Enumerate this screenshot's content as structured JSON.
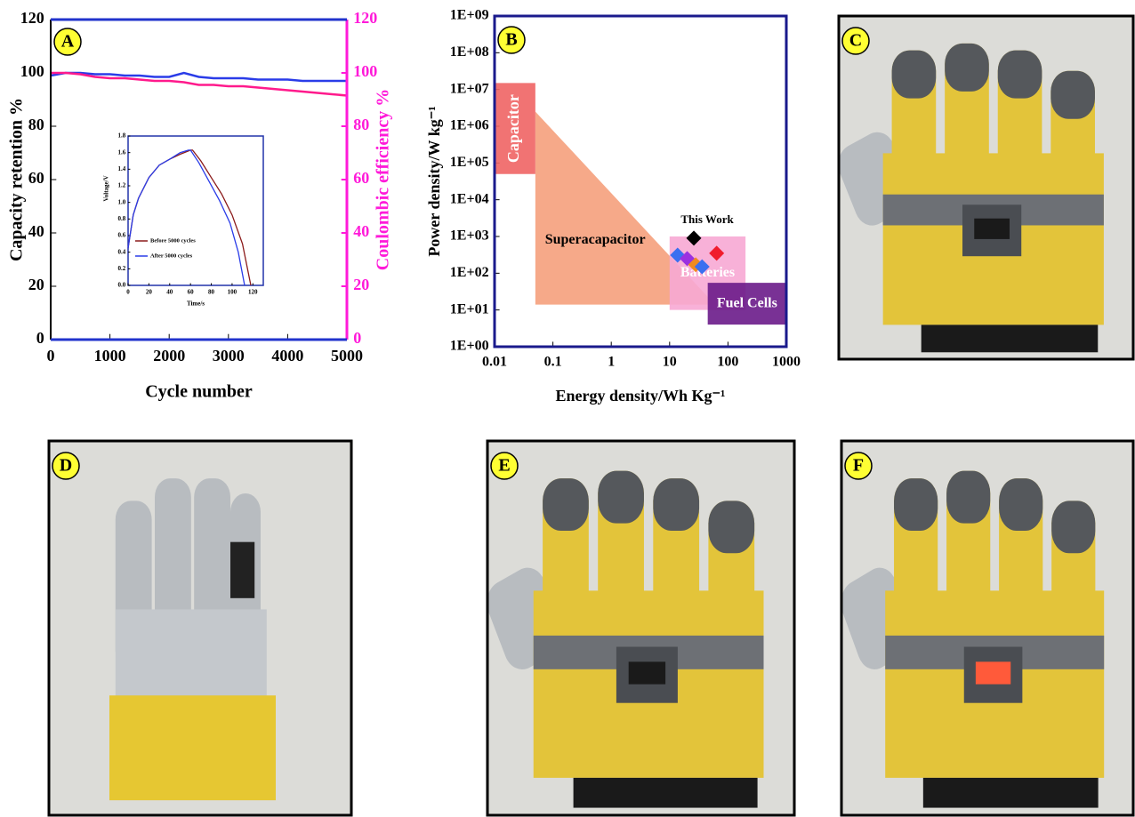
{
  "chart_data": [
    {
      "type": "line",
      "label": "A",
      "x": [
        0,
        250,
        500,
        750,
        1000,
        1250,
        1500,
        1750,
        2000,
        2250,
        2500,
        2750,
        3000,
        3250,
        3500,
        3750,
        4000,
        4250,
        4500,
        4750,
        5000
      ],
      "xlim": [
        0,
        5000
      ],
      "xticks": [
        0,
        1000,
        2000,
        3000,
        4000,
        5000
      ],
      "ylim": [
        0,
        120
      ],
      "yticks": [
        0,
        20,
        40,
        60,
        80,
        100,
        120
      ],
      "y2lim": [
        0,
        120
      ],
      "y2ticks": [
        0,
        20,
        40,
        60,
        80,
        100,
        120
      ],
      "x_label": "Cycle number",
      "y_label": "Capacity retention %",
      "y2_label": "Coulombic efficiency %",
      "y2_color": "#ff1ad9",
      "series": [
        {
          "color": "#2a3ce8",
          "values": [
            99,
            100,
            100,
            99.5,
            99.5,
            99,
            99,
            98.5,
            98.5,
            100,
            98.5,
            98,
            98,
            98,
            97.5,
            97.5,
            97.5,
            97,
            97,
            97,
            97
          ]
        },
        {
          "color": "#ff1a8c",
          "axis": "y2",
          "values": [
            100,
            100,
            99.5,
            98.5,
            98,
            98,
            97.5,
            97,
            97,
            96.5,
            95.5,
            95.5,
            95,
            95,
            94.5,
            94,
            93.5,
            93,
            92.5,
            92,
            91.5
          ]
        }
      ]
    },
    {
      "type": "line",
      "x_label": "Time/s",
      "y_label": "Voltage/V",
      "xlim": [
        0,
        130
      ],
      "xticks": [
        0,
        20,
        40,
        60,
        80,
        100,
        120
      ],
      "ylim": [
        0,
        1.8
      ],
      "yticks": [
        {
          "value": 0,
          "label": "0.0"
        },
        0.2,
        0.4,
        0.6,
        0.8,
        {
          "value": 1,
          "label": "1.0"
        },
        1.2,
        1.4,
        1.6,
        1.8
      ],
      "legend": "lower left",
      "series": [
        {
          "name": "Before 5000 cycles",
          "color": "#8b1a1a",
          "x": [
            0,
            5,
            10,
            20,
            30,
            40,
            50,
            60,
            62,
            70,
            80,
            90,
            100,
            110,
            118
          ],
          "values": [
            0.45,
            0.85,
            1.05,
            1.3,
            1.45,
            1.52,
            1.58,
            1.63,
            1.63,
            1.5,
            1.3,
            1.1,
            0.85,
            0.5,
            0
          ]
        },
        {
          "name": "After 5000 cycles",
          "color": "#2a3ce8",
          "x": [
            0,
            5,
            10,
            20,
            30,
            40,
            50,
            58,
            60,
            68,
            78,
            88,
            98,
            106,
            112
          ],
          "values": [
            0.45,
            0.85,
            1.05,
            1.3,
            1.45,
            1.52,
            1.6,
            1.63,
            1.63,
            1.48,
            1.25,
            1.02,
            0.75,
            0.4,
            0
          ]
        }
      ]
    },
    {
      "type": "scatter",
      "label": "B",
      "xscale": "log",
      "yscale": "log",
      "xlim": [
        0.01,
        1000
      ],
      "xticks": [
        0.01,
        0.1,
        1,
        10,
        100,
        1000
      ],
      "ylim": [
        1,
        1000000000
      ],
      "yticks": [
        {
          "value": 1,
          "label": "1E+00"
        },
        {
          "value": 10,
          "label": "1E+01"
        },
        {
          "value": 100,
          "label": "1E+02"
        },
        {
          "value": 1000,
          "label": "1E+03"
        },
        {
          "value": 10000,
          "label": "1E+04"
        },
        {
          "value": 100000,
          "label": "1E+05"
        },
        {
          "value": 1000000,
          "label": "1E+06"
        },
        {
          "value": 10000000,
          "label": "1E+07"
        },
        {
          "value": 100000000,
          "label": "1E+08"
        },
        {
          "value": 1000000000,
          "label": "1E+09"
        }
      ],
      "x_label": "Energy density/Wh Kg⁻¹",
      "y_label": "Power density/W kg⁻¹",
      "regions": [
        {
          "name": "Superacapacitor",
          "color": "#f5a07c",
          "text_color": "#000000",
          "x": [
            0.05,
            60,
            0.05
          ],
          "y": [
            2500000,
            14,
            14
          ]
        },
        {
          "name": "Capacitor",
          "color": "#f06464",
          "text_color": "#ffffff",
          "x": [
            0.01,
            0.05
          ],
          "y": [
            50000,
            15000000
          ]
        },
        {
          "name": "Batteries",
          "color": "#f7a8d4",
          "text_color": "#ffffff",
          "x": [
            10,
            200
          ],
          "y": [
            10,
            1000
          ]
        },
        {
          "name": "Fuel Cells",
          "color": "#6a1b8a",
          "text_color": "#ffffff",
          "x": [
            45,
            1000
          ],
          "y": [
            4,
            55
          ]
        }
      ],
      "x": [
        26,
        13.7,
        20,
        28,
        36,
        64
      ],
      "values": [
        900,
        311,
        250,
        170,
        150,
        350
      ],
      "colors": [
        "#000000",
        "#3b6ff0",
        "#9b30e0",
        "#f08a20",
        "#3b6ff0",
        "#f01c2c"
      ],
      "annotation": "This Work"
    }
  ],
  "photos": [
    {
      "label": "C"
    },
    {
      "label": "D"
    },
    {
      "label": "E"
    },
    {
      "label": "F"
    }
  ]
}
